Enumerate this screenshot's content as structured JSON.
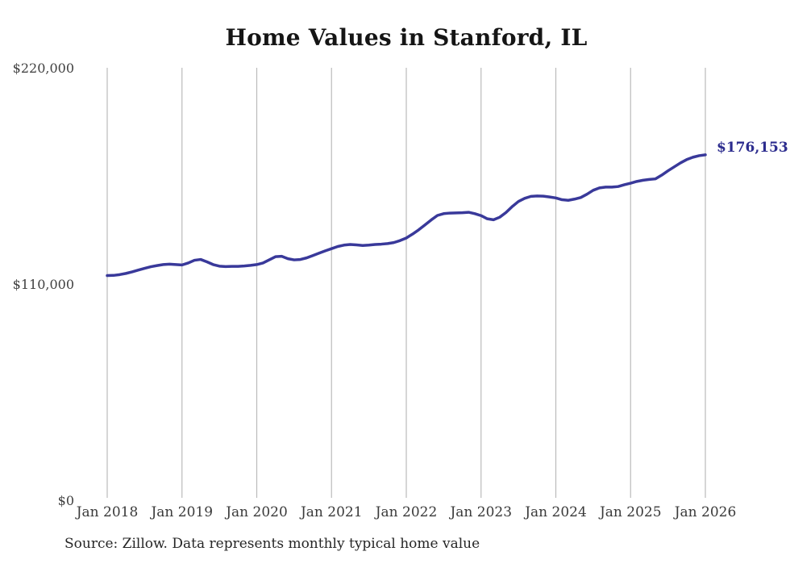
{
  "page": {
    "background": "#ffffff"
  },
  "chart_data": {
    "type": "line",
    "title": "Home Values in Stanford, IL",
    "x_tick_labels": [
      "Jan 2018",
      "Jan 2019",
      "Jan 2020",
      "Jan 2021",
      "Jan 2022",
      "Jan 2023",
      "Jan 2024",
      "Jan 2025",
      "Jan 2026"
    ],
    "y_ticks": [
      {
        "label": "$220,000",
        "value": 220000
      },
      {
        "label": "$110,000",
        "value": 110000
      },
      {
        "label": "$0",
        "value": 0
      }
    ],
    "ylim": [
      0,
      220000
    ],
    "grid": "vertical-year-gridlines-only",
    "legend": "none",
    "series": [
      {
        "name": "Monthly typical home value",
        "start": "Jan 2018",
        "frequency": "monthly",
        "values": [
          114700,
          114800,
          115200,
          115800,
          116600,
          117500,
          118400,
          119200,
          119800,
          120300,
          120500,
          120300,
          120100,
          121100,
          122500,
          122900,
          121700,
          120300,
          119500,
          119300,
          119400,
          119400,
          119600,
          119900,
          120300,
          121100,
          122700,
          124300,
          124500,
          123300,
          122700,
          122900,
          123700,
          124900,
          126100,
          127300,
          128400,
          129500,
          130200,
          130500,
          130300,
          130000,
          130200,
          130500,
          130700,
          131000,
          131500,
          132500,
          133800,
          135800,
          138000,
          140500,
          143000,
          145300,
          146200,
          146500,
          146600,
          146700,
          146900,
          146200,
          145200,
          143600,
          143100,
          144400,
          146800,
          149800,
          152400,
          154000,
          155000,
          155200,
          155100,
          154700,
          154200,
          153300,
          153000,
          153600,
          154400,
          156100,
          158100,
          159300,
          159700,
          159700,
          160000,
          160900,
          161700,
          162600,
          163200,
          163600,
          163900,
          165800,
          168000,
          170000,
          172000,
          173700,
          174900,
          175700,
          176153
        ]
      }
    ],
    "end_label": "$176,153",
    "last_value": 176153,
    "line_color": "#39399a",
    "annotation_color": "#2c2c8e",
    "gridline_color": "#bbbbbb",
    "source": "Source: Zillow. Data represents monthly typical home value"
  }
}
